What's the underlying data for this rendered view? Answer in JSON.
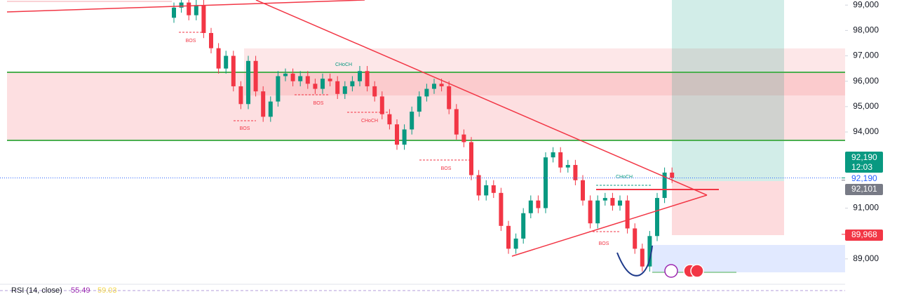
{
  "chart_data": {
    "type": "candlestick",
    "open": [
      98500,
      98900,
      99100,
      98600,
      99000,
      97900,
      97300,
      96500,
      97000,
      95800,
      95100,
      96800,
      95600,
      94600,
      95200,
      96200,
      96300,
      96000,
      96200,
      95900,
      95700,
      96100,
      96000,
      95500,
      95800,
      96000,
      96400,
      95800,
      95400,
      94700,
      94300,
      93500,
      94100,
      94800,
      95400,
      95700,
      95900,
      95800,
      94900,
      93900,
      93600,
      92300,
      91500,
      91900,
      91600,
      90300,
      89400,
      89800,
      90800,
      91300,
      91000,
      93000,
      93200,
      92600,
      92700,
      92100,
      91300,
      90400,
      91300,
      91400,
      91100,
      91300,
      90200,
      89400,
      88700,
      89900,
      91400,
      92400
    ],
    "high": [
      99100,
      99300,
      99300,
      99200,
      99200,
      98100,
      97500,
      97200,
      97200,
      96000,
      97000,
      97000,
      95800,
      95400,
      96400,
      96500,
      96500,
      96400,
      96400,
      96100,
      96300,
      96300,
      96200,
      96000,
      96200,
      96600,
      96600,
      96000,
      95600,
      94900,
      94500,
      94300,
      95000,
      95600,
      95900,
      96100,
      96100,
      96000,
      95100,
      94100,
      93800,
      92500,
      92100,
      92100,
      91800,
      90500,
      90000,
      91000,
      91500,
      91500,
      93200,
      93400,
      93400,
      92900,
      92900,
      92300,
      91500,
      91500,
      91600,
      91600,
      91500,
      91500,
      90400,
      89600,
      90100,
      91600,
      92600,
      92600
    ],
    "low": [
      98300,
      98700,
      98400,
      98400,
      97700,
      97100,
      96300,
      96300,
      95600,
      94900,
      94900,
      95400,
      94400,
      94400,
      95000,
      96000,
      95800,
      95800,
      95700,
      95500,
      95500,
      95800,
      95300,
      95300,
      95600,
      95800,
      95600,
      95200,
      94500,
      94100,
      93300,
      93300,
      93900,
      94600,
      95200,
      95500,
      95600,
      94700,
      93700,
      93400,
      92100,
      91300,
      91300,
      91400,
      90100,
      89200,
      89200,
      89600,
      90600,
      90800,
      90800,
      92800,
      92400,
      92400,
      91900,
      91100,
      90200,
      90200,
      91100,
      90900,
      90900,
      90000,
      89200,
      88500,
      88500,
      89700,
      91200,
      91990
    ],
    "close": [
      98900,
      99100,
      98600,
      99000,
      97900,
      97300,
      96500,
      97000,
      95800,
      95100,
      96800,
      95600,
      94600,
      95200,
      96200,
      96300,
      96000,
      96200,
      95900,
      95700,
      96100,
      96000,
      95500,
      95800,
      96000,
      96400,
      95800,
      95400,
      94700,
      94300,
      93500,
      94100,
      94800,
      95400,
      95700,
      95900,
      95800,
      94900,
      93900,
      93600,
      92300,
      91500,
      91900,
      91600,
      90300,
      89400,
      89800,
      90800,
      91300,
      91000,
      93000,
      93200,
      92600,
      92700,
      92100,
      91300,
      90400,
      91300,
      91400,
      91100,
      91300,
      90200,
      89400,
      88700,
      89900,
      91400,
      92400,
      92190
    ],
    "up_color": "#089981",
    "down_color": "#f23645",
    "ylim": [
      88000,
      99200
    ],
    "yticks": [
      {
        "value": 99000,
        "label": "99,000"
      },
      {
        "value": 98000,
        "label": "98,000"
      },
      {
        "value": 97000,
        "label": "97,000"
      },
      {
        "value": 96000,
        "label": "96,000"
      },
      {
        "value": 95000,
        "label": "95,000"
      },
      {
        "value": 94000,
        "label": "94,000"
      },
      {
        "value": 91000,
        "label": "91,000"
      },
      {
        "value": 89000,
        "label": "89,000"
      }
    ],
    "last_price": {
      "value": 92190,
      "label": "92,190",
      "countdown": "12:03"
    },
    "price_line": {
      "value": 92190,
      "label": "92,190"
    },
    "mark_price": {
      "value": 92101,
      "label": "92,101"
    },
    "stop_price": {
      "value": 89968,
      "label": "89,968"
    },
    "annotations": [
      "BOS",
      "BOS",
      "BOS",
      "CHoCH",
      "CHoCH",
      "BOS",
      "CHoCH",
      "BOS"
    ],
    "indicator": {
      "label": "RSI (14, close)",
      "values": [
        "55.49",
        "59.03"
      ]
    }
  }
}
